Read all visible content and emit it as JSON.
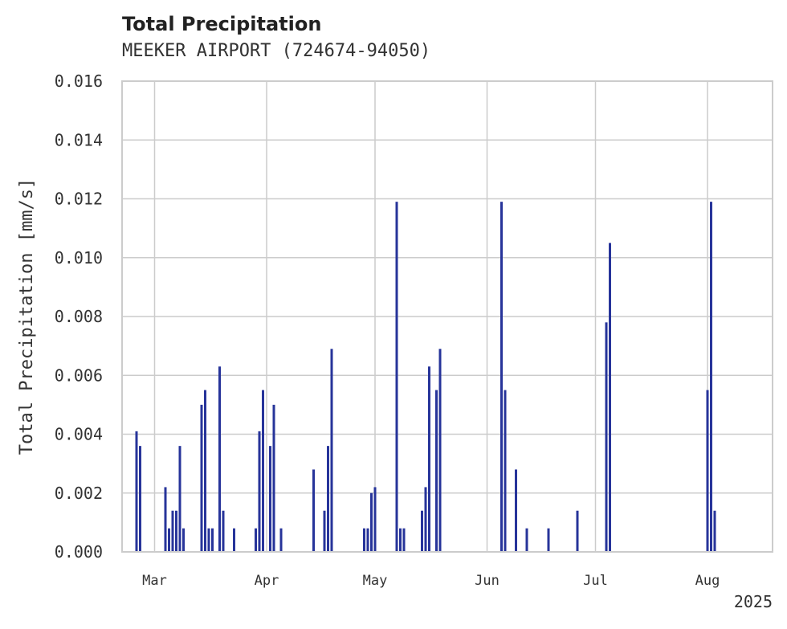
{
  "chart_data": {
    "type": "bar",
    "title": "Total Precipitation",
    "subtitle": "MEEKER AIRPORT (724674-94050)",
    "ylabel": "Total Precipitation [mm/s]",
    "xlabel": "",
    "ylim": [
      0,
      0.016
    ],
    "yticks": [
      "0.000",
      "0.002",
      "0.004",
      "0.006",
      "0.008",
      "0.010",
      "0.012",
      "0.014",
      "0.016"
    ],
    "xlim": [
      "2025-02-20",
      "2025-08-19"
    ],
    "xticks": [
      {
        "label": "Mar",
        "date": "2025-03-01"
      },
      {
        "label": "Apr",
        "date": "2025-04-01"
      },
      {
        "label": "May",
        "date": "2025-05-01"
      },
      {
        "label": "Jun",
        "date": "2025-06-01"
      },
      {
        "label": "Jul",
        "date": "2025-07-01"
      },
      {
        "label": "Aug",
        "date": "2025-08-01"
      }
    ],
    "year_label": "2025",
    "grid": true,
    "bar_color": "#27349a",
    "series": [
      {
        "values": [
          [
            "2025-02-24",
            0.0041
          ],
          [
            "2025-02-25",
            0.0036
          ],
          [
            "2025-02-25",
            0.0022
          ],
          [
            "2025-03-04",
            0.0022
          ],
          [
            "2025-03-05",
            0.0008
          ],
          [
            "2025-03-06",
            0.0014
          ],
          [
            "2025-03-07",
            0.0014
          ],
          [
            "2025-03-08",
            0.0036
          ],
          [
            "2025-03-08",
            0.0008
          ],
          [
            "2025-03-09",
            0.0008
          ],
          [
            "2025-03-14",
            0.005
          ],
          [
            "2025-03-15",
            0.0055
          ],
          [
            "2025-03-15",
            0.0028
          ],
          [
            "2025-03-16",
            0.0008
          ],
          [
            "2025-03-17",
            0.0008
          ],
          [
            "2025-03-19",
            0.0063
          ],
          [
            "2025-03-20",
            0.0014
          ],
          [
            "2025-03-23",
            0.0008
          ],
          [
            "2025-03-29",
            0.0008
          ],
          [
            "2025-03-30",
            0.0041
          ],
          [
            "2025-03-31",
            0.0055
          ],
          [
            "2025-03-31",
            0.0041
          ],
          [
            "2025-04-02",
            0.0036
          ],
          [
            "2025-04-03",
            0.005
          ],
          [
            "2025-04-03",
            0.0028
          ],
          [
            "2025-04-05",
            0.0008
          ],
          [
            "2025-04-05",
            0.0006
          ],
          [
            "2025-04-14",
            0.0028
          ],
          [
            "2025-04-17",
            0.0014
          ],
          [
            "2025-04-18",
            0.0036
          ],
          [
            "2025-04-19",
            0.0069
          ],
          [
            "2025-04-28",
            0.0008
          ],
          [
            "2025-04-29",
            0.0008
          ],
          [
            "2025-04-30",
            0.002
          ],
          [
            "2025-05-01",
            0.0022
          ],
          [
            "2025-05-07",
            0.0119
          ],
          [
            "2025-05-08",
            0.0008
          ],
          [
            "2025-05-09",
            0.0008
          ],
          [
            "2025-05-14",
            0.0014
          ],
          [
            "2025-05-15",
            0.0022
          ],
          [
            "2025-05-16",
            0.0063
          ],
          [
            "2025-05-18",
            0.0055
          ],
          [
            "2025-05-19",
            0.0069
          ],
          [
            "2025-06-05",
            0.0119
          ],
          [
            "2025-06-06",
            0.0055
          ],
          [
            "2025-06-06",
            0.0041
          ],
          [
            "2025-06-09",
            0.0028
          ],
          [
            "2025-06-12",
            0.0008
          ],
          [
            "2025-06-18",
            0.0008
          ],
          [
            "2025-06-26",
            0.0014
          ],
          [
            "2025-07-04",
            0.0078
          ],
          [
            "2025-07-05",
            0.0105
          ],
          [
            "2025-07-05",
            0.0008
          ],
          [
            "2025-08-01",
            0.0055
          ],
          [
            "2025-08-02",
            0.0119
          ],
          [
            "2025-08-03",
            0.0014
          ]
        ]
      }
    ]
  }
}
